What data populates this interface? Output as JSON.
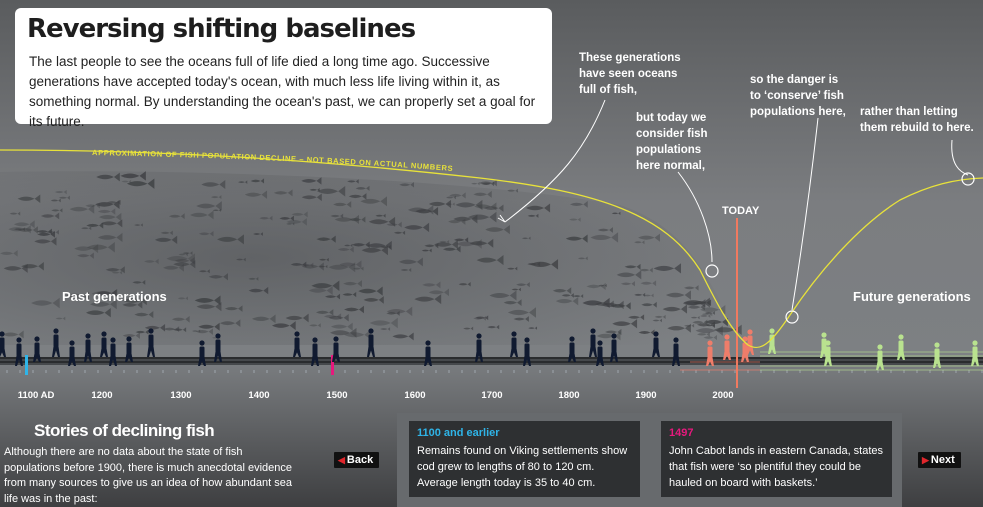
{
  "title": "Reversing shifting baselines",
  "intro": "The last people to see the oceans full of life died a long time ago. Successive generations have accepted today's ocean, with much less life living within it, as something normal. By understanding the ocean's past, we can properly set a goal for its future.",
  "curve_label": "APPROXIMATION OF FISH POPULATION DECLINE – NOT BASED ON ACTUAL NUMBERS",
  "notes": {
    "oceans_full": "These generations have seen oceans full of fish,",
    "today_normal": "but today we consider fish populations here normal,",
    "conserve": "so the danger is to ‘conserve’ fish populations here,",
    "rebuild": "rather than letting them rebuild to here."
  },
  "today_label": "TODAY",
  "past_label": "Past generations",
  "future_label": "Future generations",
  "timeline": {
    "marker_1100": "1100 AD",
    "years": [
      "1200",
      "1300",
      "1400",
      "1500",
      "1600",
      "1700",
      "1800",
      "1900",
      "2000"
    ]
  },
  "colors": {
    "curve": "#e8e23a",
    "past_figures": "#101a30",
    "present_figures": "#ee7d6a",
    "future_figures": "#b9e28f",
    "marker_1100": "#2fb4e8",
    "marker_1497": "#e6197d",
    "today_line": "#f07a60"
  },
  "stories": {
    "title": "Stories of declining fish",
    "text": "Although there are no data about the state of fish populations before 1900, there is much anecdotal evidence from many sources to give us an idea of how abundant sea life was in the past:"
  },
  "nav": {
    "back": "Back",
    "next": "Next",
    "back_icon": "left-arrow-icon",
    "next_icon": "right-arrow-icon"
  },
  "cards": [
    {
      "title": "1100 and earlier",
      "text": "Remains found on Viking settlements show cod grew to lengths of 80 to 120 cm.  Average length today is 35 to 40 cm."
    },
    {
      "title": "1497",
      "text": "John Cabot lands in eastern Canada, states that fish were ‘so plentiful they could be hauled on board with baskets.’"
    }
  ]
}
